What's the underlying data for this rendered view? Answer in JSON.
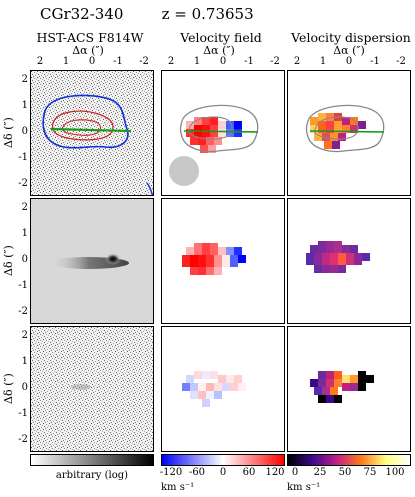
{
  "figure": {
    "object_name": "CGr32-340",
    "redshift_label": "z = 0.73653"
  },
  "columns": [
    {
      "title": "HST-ACS F814W"
    },
    {
      "title": "Velocity field"
    },
    {
      "title": "Velocity dispersion"
    }
  ],
  "x_axis": {
    "label": "Δα (″)",
    "ticks": [
      "2",
      "1",
      "0",
      "-1",
      "-2"
    ]
  },
  "y_axis": {
    "label": "Δδ (″)",
    "ticks": [
      "2",
      "1",
      "0",
      "-1",
      "-2"
    ]
  },
  "colorbars": [
    {
      "name": "arbitrary-scale",
      "label": "arbitrary (log)",
      "gradient": [
        "#ffffff",
        "#000000"
      ]
    },
    {
      "name": "velocity-scale",
      "ticks": [
        "-120",
        "-60",
        "0",
        "60",
        "120"
      ],
      "unit": "km s⁻¹",
      "gradient": [
        "#0000ff",
        "#ffffff",
        "#ff0000"
      ]
    },
    {
      "name": "dispersion-scale",
      "ticks": [
        "0",
        "25",
        "50",
        "75",
        "100"
      ],
      "unit": "km s⁻¹",
      "gradient": [
        "#000000",
        "#3a0a8a",
        "#c0208a",
        "#ff7a1a",
        "#ffff80",
        "#ffffff"
      ]
    }
  ],
  "colors": {
    "contour_blue": "#1030e0",
    "contour_red": "#d02020",
    "contour_gray": "#888888",
    "axis_green": "#1a9a1a",
    "seeing_disk": "#c8c8c8"
  }
}
